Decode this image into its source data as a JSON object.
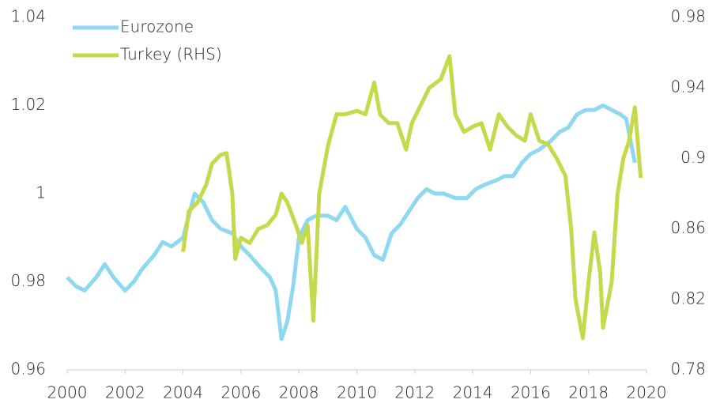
{
  "chart_data": {
    "type": "line",
    "xlim": [
      2000,
      2020
    ],
    "xticks": [
      2000,
      2002,
      2004,
      2006,
      2008,
      2010,
      2012,
      2014,
      2016,
      2018,
      2020
    ],
    "ylim": [
      0.96,
      1.04
    ],
    "yticks": [
      0.96,
      0.98,
      1,
      1.02,
      1.04
    ],
    "y2lim": [
      0.78,
      0.98
    ],
    "y2ticks": [
      0.78,
      0.82,
      0.86,
      0.9,
      0.94,
      0.98
    ],
    "legend": "top-left",
    "series": [
      {
        "name": "Eurozone",
        "color": "#8fd8f2",
        "x": [
          2000.0,
          2000.3,
          2000.6,
          2001.0,
          2001.3,
          2001.6,
          2002.0,
          2002.3,
          2002.6,
          2003.0,
          2003.3,
          2003.6,
          2004.0,
          2004.4,
          2004.7,
          2005.0,
          2005.3,
          2005.7,
          2006.0,
          2006.3,
          2006.7,
          2007.0,
          2007.2,
          2007.4,
          2007.6,
          2007.8,
          2008.0,
          2008.3,
          2008.6,
          2009.0,
          2009.3,
          2009.6,
          2010.0,
          2010.3,
          2010.6,
          2010.9,
          2011.2,
          2011.5,
          2011.8,
          2012.1,
          2012.4,
          2012.7,
          2013.0,
          2013.4,
          2013.8,
          2014.1,
          2014.4,
          2014.8,
          2015.1,
          2015.4,
          2015.7,
          2016.0,
          2016.3,
          2016.7,
          2017.0,
          2017.3,
          2017.6,
          2017.9,
          2018.2,
          2018.5,
          2018.8,
          2019.1,
          2019.3,
          2019.6
        ],
        "values": [
          0.981,
          0.979,
          0.978,
          0.981,
          0.984,
          0.981,
          0.978,
          0.98,
          0.983,
          0.986,
          0.989,
          0.988,
          0.99,
          1.0,
          0.998,
          0.994,
          0.992,
          0.991,
          0.988,
          0.986,
          0.983,
          0.981,
          0.978,
          0.967,
          0.971,
          0.979,
          0.99,
          0.994,
          0.995,
          0.995,
          0.994,
          0.997,
          0.992,
          0.99,
          0.986,
          0.985,
          0.991,
          0.993,
          0.996,
          0.999,
          1.001,
          1.0,
          1.0,
          0.999,
          0.999,
          1.001,
          1.002,
          1.003,
          1.004,
          1.004,
          1.007,
          1.009,
          1.01,
          1.012,
          1.014,
          1.015,
          1.018,
          1.019,
          1.019,
          1.02,
          1.019,
          1.018,
          1.017,
          1.007
        ]
      },
      {
        "name": "Turkey (RHS)",
        "color": "#c5d94a",
        "axis": "y2",
        "x": [
          2004.0,
          2004.2,
          2004.5,
          2004.8,
          2005.0,
          2005.3,
          2005.5,
          2005.7,
          2005.8,
          2006.0,
          2006.3,
          2006.6,
          2006.9,
          2007.2,
          2007.4,
          2007.6,
          2007.9,
          2008.1,
          2008.3,
          2008.5,
          2008.7,
          2009.0,
          2009.3,
          2009.6,
          2010.0,
          2010.3,
          2010.6,
          2010.8,
          2011.1,
          2011.4,
          2011.7,
          2011.9,
          2012.2,
          2012.5,
          2012.9,
          2013.2,
          2013.4,
          2013.7,
          2014.0,
          2014.3,
          2014.6,
          2014.9,
          2015.2,
          2015.5,
          2015.8,
          2016.0,
          2016.3,
          2016.6,
          2016.9,
          2017.2,
          2017.4,
          2017.55,
          2017.8,
          2018.0,
          2018.2,
          2018.4,
          2018.5,
          2018.8,
          2019.0,
          2019.2,
          2019.4,
          2019.6,
          2019.8
        ],
        "values": [
          0.847,
          0.87,
          0.875,
          0.885,
          0.897,
          0.902,
          0.903,
          0.88,
          0.843,
          0.855,
          0.852,
          0.86,
          0.862,
          0.868,
          0.88,
          0.875,
          0.862,
          0.852,
          0.862,
          0.808,
          0.88,
          0.907,
          0.925,
          0.925,
          0.927,
          0.925,
          0.943,
          0.925,
          0.92,
          0.92,
          0.905,
          0.92,
          0.93,
          0.94,
          0.945,
          0.958,
          0.925,
          0.915,
          0.918,
          0.92,
          0.905,
          0.925,
          0.918,
          0.913,
          0.91,
          0.925,
          0.91,
          0.908,
          0.9,
          0.89,
          0.86,
          0.82,
          0.798,
          0.83,
          0.858,
          0.835,
          0.804,
          0.83,
          0.88,
          0.9,
          0.91,
          0.929,
          0.889
        ]
      }
    ]
  }
}
